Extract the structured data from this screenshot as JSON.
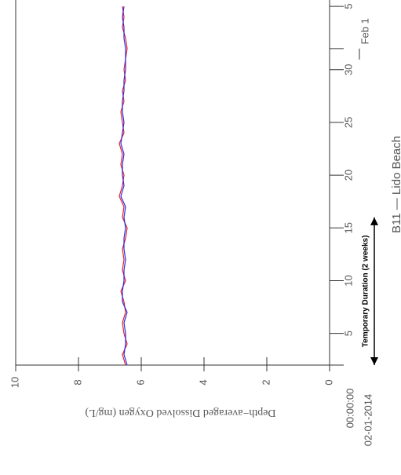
{
  "chart_data": {
    "type": "line",
    "title": "B11 — Lido Beach",
    "y_label": "Depth−averaged Dissolved Oxygen (mg/L)",
    "start_date": "02-01-2014",
    "annotation": "Temporary Duration (2 weeks)",
    "annotation_range": [
      2,
      16
    ],
    "x": [
      2,
      3,
      4,
      5,
      6,
      7,
      8,
      9,
      10,
      11,
      12,
      13,
      14,
      15,
      16,
      17,
      18,
      19,
      20,
      21,
      22,
      23,
      24,
      25,
      26,
      27,
      28,
      29,
      30,
      31,
      32,
      33,
      34,
      35,
      36
    ],
    "series": [
      {
        "name": "red",
        "color": "#e8202a",
        "values": [
          6.5,
          6.6,
          6.45,
          6.55,
          6.6,
          6.5,
          6.55,
          6.65,
          6.5,
          6.6,
          6.55,
          6.6,
          6.5,
          6.45,
          6.6,
          6.55,
          6.7,
          6.6,
          6.55,
          6.65,
          6.6,
          6.7,
          6.55,
          6.6,
          6.65,
          6.55,
          6.6,
          6.5,
          6.55,
          6.5,
          6.45,
          6.5,
          6.6,
          6.55,
          6.6
        ]
      },
      {
        "name": "blue",
        "color": "#2a2ae8",
        "values": [
          6.45,
          6.55,
          6.5,
          6.5,
          6.55,
          6.45,
          6.6,
          6.6,
          6.55,
          6.55,
          6.5,
          6.55,
          6.55,
          6.5,
          6.55,
          6.5,
          6.65,
          6.55,
          6.6,
          6.6,
          6.55,
          6.65,
          6.6,
          6.55,
          6.6,
          6.6,
          6.55,
          6.55,
          6.5,
          6.5,
          6.5,
          6.55,
          6.55,
          6.6,
          6.55
        ]
      }
    ],
    "xlim": [
      2,
      36.6
    ],
    "xticks": [
      {
        "value": 2,
        "label": "00:00:00"
      },
      5,
      10,
      15,
      20,
      25,
      30,
      {
        "value": 32,
        "label": "Feb 1"
      },
      {
        "value": 36,
        "label": "5"
      }
    ],
    "ylim": [
      0,
      10
    ],
    "yticks": [
      0,
      2,
      4,
      6,
      8,
      10
    ]
  }
}
